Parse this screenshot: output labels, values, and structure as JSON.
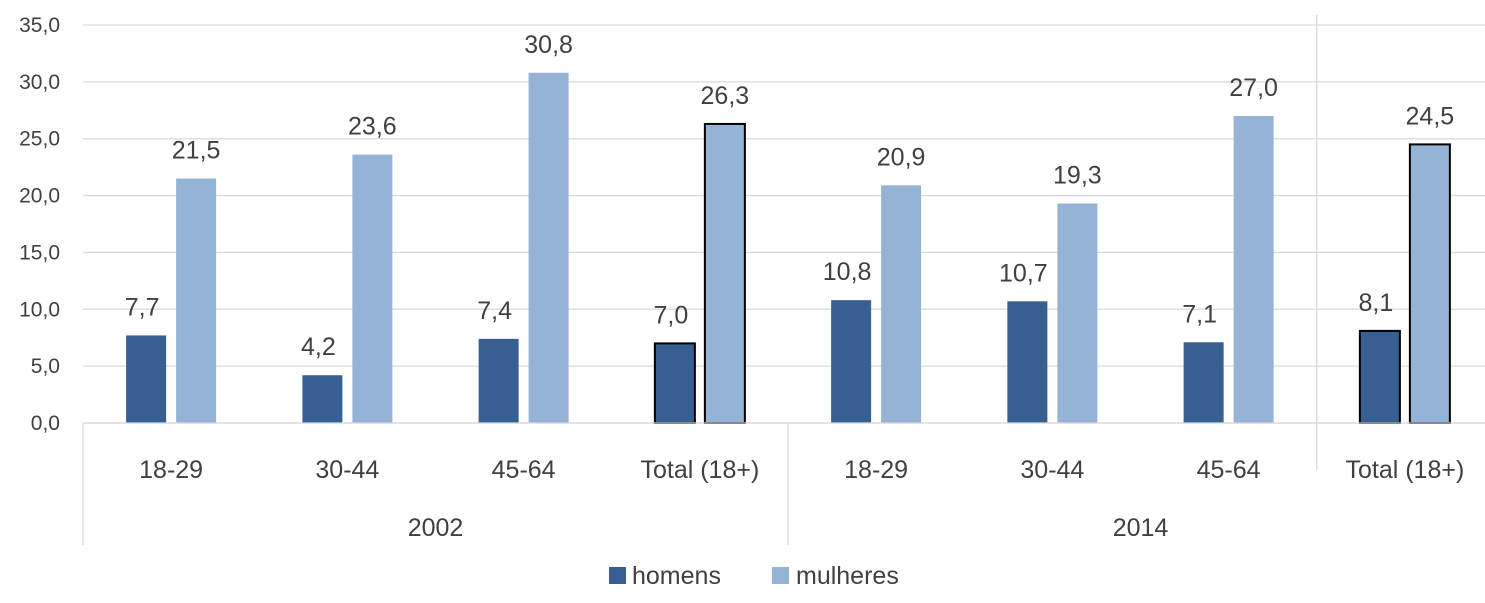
{
  "chart_data": {
    "type": "bar",
    "groups": [
      {
        "label": "2002",
        "categories": [
          "18-29",
          "30-44",
          "45-64",
          "Total (18+)"
        ]
      },
      {
        "label": "2014",
        "categories": [
          "18-29",
          "30-44",
          "45-64",
          "Total (18+)"
        ]
      }
    ],
    "series": [
      {
        "name": "homens",
        "color": "#375f91",
        "values": [
          7.7,
          4.2,
          7.4,
          7.0,
          10.8,
          10.7,
          7.1,
          8.1
        ],
        "labels": [
          "7,7",
          "4,2",
          "7,4",
          "7,0",
          "10,8",
          "10,7",
          "7,1",
          "8,1"
        ]
      },
      {
        "name": "mulheres",
        "color": "#95b3d7",
        "values": [
          21.5,
          23.6,
          30.8,
          26.3,
          20.9,
          19.3,
          27.0,
          24.5
        ],
        "labels": [
          "21,5",
          "23,6",
          "30,8",
          "26,3",
          "20,9",
          "19,3",
          "27,0",
          "24,5"
        ]
      }
    ],
    "highlighted_categories": [
      "Total (18+)"
    ],
    "y_ticks": [
      0,
      5,
      10,
      15,
      20,
      25,
      30,
      35
    ],
    "y_tick_labels": [
      "0,0",
      "5,0",
      "10,0",
      "15,0",
      "20,0",
      "25,0",
      "30,0",
      "35,0"
    ],
    "ylim": [
      0,
      35
    ],
    "grid": true,
    "legend_position": "bottom",
    "title": "",
    "xlabel": "",
    "ylabel": ""
  },
  "colors": {
    "grid": "#d9d9d9",
    "axis": "#d9d9d9",
    "text": "#404040",
    "highlight_border": "#000000"
  }
}
